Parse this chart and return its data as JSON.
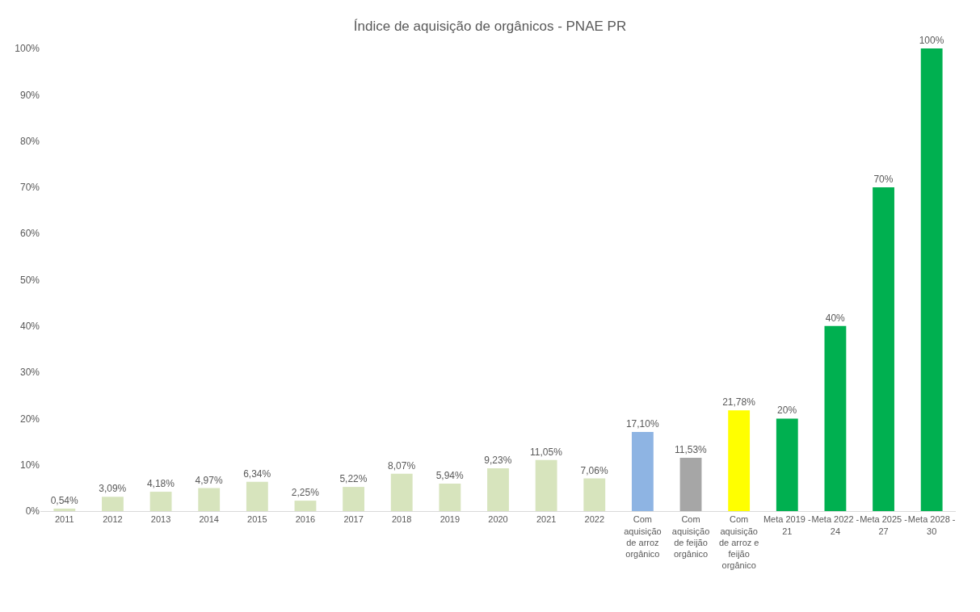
{
  "chart_data": {
    "type": "bar",
    "title": "Índice de aquisição de orgânicos - PNAE PR",
    "categories": [
      "2011",
      "2012",
      "2013",
      "2014",
      "2015",
      "2016",
      "2017",
      "2018",
      "2019",
      "2020",
      "2021",
      "2022",
      "Com aquisição de arroz orgânico",
      "Com aquisição de feijão orgânico",
      "Com aquisição de arroz e feijão orgânico",
      "Meta 2019 - 21",
      "Meta 2022 - 24",
      "Meta 2025 - 27",
      "Meta 2028 - 30"
    ],
    "values": [
      0.54,
      3.09,
      4.18,
      4.97,
      6.34,
      2.25,
      5.22,
      8.07,
      5.94,
      9.23,
      11.05,
      7.06,
      17.1,
      11.53,
      21.78,
      20,
      40,
      70,
      100
    ],
    "value_labels": [
      "0,54%",
      "3,09%",
      "4,18%",
      "4,97%",
      "6,34%",
      "2,25%",
      "5,22%",
      "8,07%",
      "5,94%",
      "9,23%",
      "11,05%",
      "7,06%",
      "17,10%",
      "11,53%",
      "21,78%",
      "20%",
      "40%",
      "70%",
      "100%"
    ],
    "colors": [
      "#d7e4bd",
      "#d7e4bd",
      "#d7e4bd",
      "#d7e4bd",
      "#d7e4bd",
      "#d7e4bd",
      "#d7e4bd",
      "#d7e4bd",
      "#d7e4bd",
      "#d7e4bd",
      "#d7e4bd",
      "#d7e4bd",
      "#8eb4e3",
      "#a6a6a6",
      "#ffff00",
      "#00b050",
      "#00b050",
      "#00b050",
      "#00b050"
    ],
    "ylim": [
      0,
      100
    ],
    "yticks": [
      {
        "value": 0,
        "label": "0%"
      },
      {
        "value": 10,
        "label": "10%"
      },
      {
        "value": 20,
        "label": "20%"
      },
      {
        "value": 30,
        "label": "30%"
      },
      {
        "value": 40,
        "label": "40%"
      },
      {
        "value": 50,
        "label": "50%"
      },
      {
        "value": 60,
        "label": "60%"
      },
      {
        "value": 70,
        "label": "70%"
      },
      {
        "value": 80,
        "label": "80%"
      },
      {
        "value": 90,
        "label": "90%"
      },
      {
        "value": 100,
        "label": "100%"
      }
    ],
    "grid": false
  }
}
